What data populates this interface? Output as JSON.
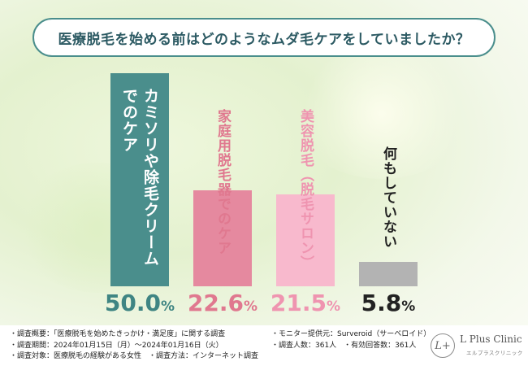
{
  "title": "医療脱毛を始める前はどのようなムダ毛ケアをしていましたか？",
  "colors": {
    "title_border": "#4a8e8c",
    "title_text": "#2c5a63",
    "bars": [
      "#4a8e8c",
      "#e5899f",
      "#f8b9cd",
      "#b3b3b3"
    ],
    "labels": [
      "#ffffff",
      "#e0788f",
      "#ef94b0",
      "#222222"
    ],
    "values": [
      "#3f8583",
      "#e0788f",
      "#ef94b0",
      "#222222"
    ]
  },
  "chart_data": {
    "type": "bar",
    "title": "医療脱毛を始める前はどのようなムダ毛ケアをしていましたか？",
    "categories": [
      "カミソリや除毛クリームでのケア",
      "家庭用脱毛器でのケア",
      "美容脱毛（脱毛サロン）",
      "何もしていない"
    ],
    "label_lines": [
      [
        "カミソリや除毛クリーム",
        "でのケア"
      ],
      [
        "家庭用脱毛器でのケア"
      ],
      [
        "美容脱毛（脱毛サロン）"
      ],
      [
        "何もしていない"
      ]
    ],
    "values": [
      50.0,
      22.6,
      21.5,
      5.8
    ],
    "value_labels": [
      {
        "num": "50.0",
        "pct": "%"
      },
      {
        "num": "22.6",
        "pct": "%"
      },
      {
        "num": "21.5",
        "pct": "%"
      },
      {
        "num": "5.8",
        "pct": "%"
      }
    ],
    "ylim": [
      0,
      50
    ],
    "xlabel": "",
    "ylabel": "",
    "grid": false
  },
  "notes_left": [
    "・調査概要：「医療脱毛を始めたきっかけ・満足度」に関する調査",
    "・調査期間：2024年01月15日（月）～2024年01月16日（火）",
    "・調査対象：医療脱毛の経験がある女性　・調査方法：インターネット調査"
  ],
  "notes_right": [
    "・モニター提供元：Surveroid（サーベロイド）",
    "・調査人数：361人　・有効回答数：361人"
  ],
  "logo": {
    "mark": "L+",
    "name": "L Plus Clinic",
    "sub": "エルプラスクリニック"
  }
}
